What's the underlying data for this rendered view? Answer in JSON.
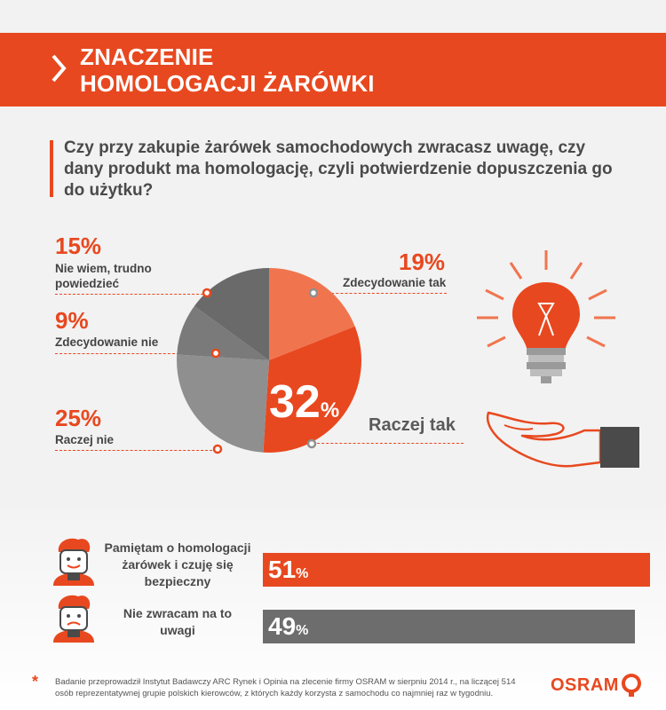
{
  "header": {
    "title_line1": "ZNACZENIE",
    "title_line2": "HOMOLOGACJI ŻARÓWKI"
  },
  "question": "Czy przy zakupie żarówek samochodowych zwracasz uwagę, czy dany produkt ma homologację, czyli potwierdzenie dopuszczenia go do użytku?",
  "pie": {
    "segments": [
      {
        "label": "Zdecydowanie tak",
        "percent_text": "19%",
        "value": 19,
        "color": "#f0754f"
      },
      {
        "label": "Raczej tak",
        "percent_text": "32",
        "percent_sign": "%",
        "value": 32,
        "color": "#e8481f"
      },
      {
        "label": "Raczej nie",
        "percent_text": "25%",
        "value": 25,
        "color": "#8f8f8f"
      },
      {
        "label": "Zdecydowanie nie",
        "percent_text": "9%",
        "value": 9,
        "color": "#7a7a7a"
      },
      {
        "label_line1": "Nie wiem, trudno",
        "label_line2": "powiedzieć",
        "percent_text": "15%",
        "value": 15,
        "color": "#6a6a6a"
      }
    ]
  },
  "bars": [
    {
      "label_line1": "Pamiętam o homologacji",
      "label_line2": "żarówek i czuję się",
      "label_line3": "bezpieczny",
      "value": 51,
      "value_text": "51",
      "sign": "%",
      "color": "#e8481f"
    },
    {
      "label_line1": "Nie zwracam na to",
      "label_line2": "uwagi",
      "value": 49,
      "value_text": "49",
      "sign": "%",
      "color": "#6d6d6d"
    }
  ],
  "footnote_marker": "*",
  "footnote": "Badanie przeprowadził Instytut Badawczy ARC Rynek i Opinia na zlecenie firmy OSRAM w sierpniu 2014 r., na liczącej 514 osób reprezentatywnej grupie polskich kierowców, z których każdy korzysta z samochodu co najmniej raz w tygodniu.",
  "brand": "OSRAM",
  "colors": {
    "accent": "#e8481f",
    "gray": "#6d6d6d",
    "background": "#f2f2f2"
  },
  "icons": [
    "chevron-right-icon",
    "light-bulb-icon",
    "open-hand-icon",
    "happy-driver-icon",
    "worried-driver-icon",
    "osram-logo-icon"
  ]
}
